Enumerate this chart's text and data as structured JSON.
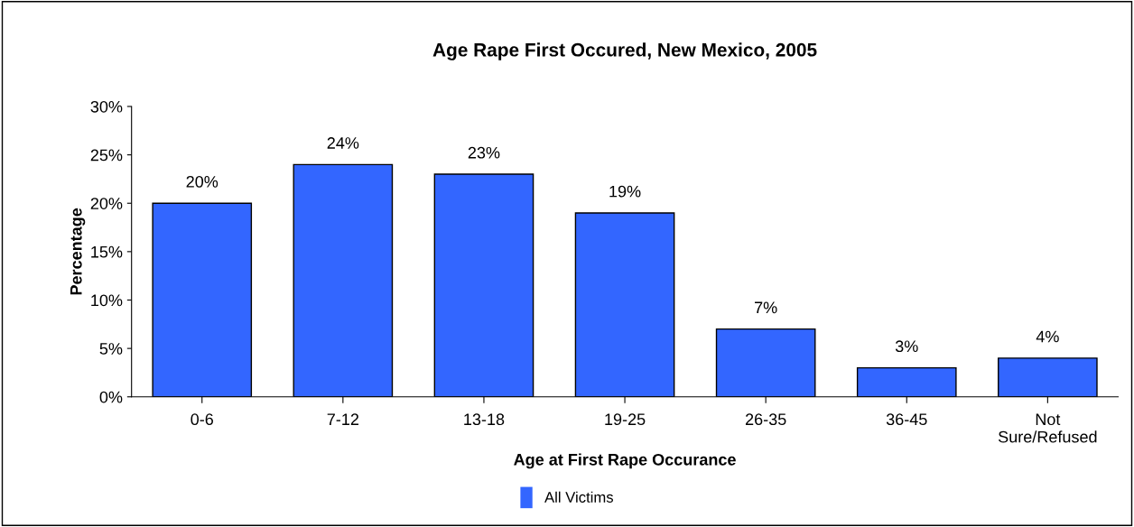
{
  "chart_data": {
    "type": "bar",
    "title": "Age Rape First Occured, New Mexico, 2005",
    "xlabel": "Age at First Rape Occurance",
    "ylabel": "Percentage",
    "categories": [
      "0-6",
      "7-12",
      "13-18",
      "19-25",
      "26-35",
      "36-45",
      "Not\nSure/Refused"
    ],
    "series": [
      {
        "name": "All Victims",
        "color": "#3366ff",
        "values": [
          20,
          24,
          23,
          19,
          7,
          3,
          4
        ],
        "value_labels": [
          "20%",
          "24%",
          "23%",
          "19%",
          "7%",
          "3%",
          "4%"
        ]
      }
    ],
    "ylim": [
      0,
      30
    ],
    "yticks": [
      {
        "value": 0,
        "label": "0%"
      },
      {
        "value": 5,
        "label": "5%"
      },
      {
        "value": 10,
        "label": "10%"
      },
      {
        "value": 15,
        "label": "15%"
      },
      {
        "value": 20,
        "label": "20%"
      },
      {
        "value": 25,
        "label": "25%"
      },
      {
        "value": 30,
        "label": "30%"
      }
    ],
    "grid": false,
    "legend": "bottom"
  }
}
